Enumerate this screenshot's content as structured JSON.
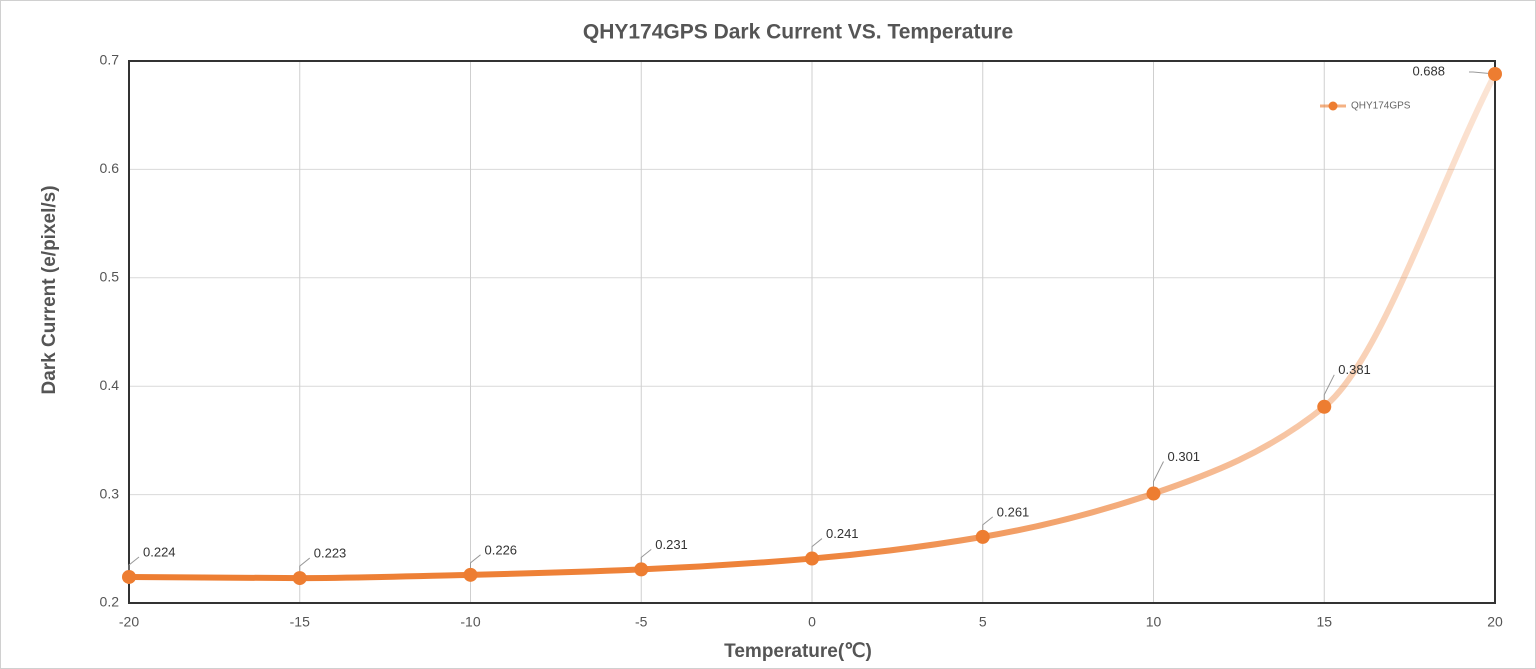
{
  "chart_data": {
    "type": "line",
    "title": "QHY174GPS  Dark Current VS. Temperature",
    "x_label": "Temperature(℃)",
    "y_label": "Dark Current (e/pixel/s)",
    "x": [
      -20,
      -15,
      -10,
      -5,
      0,
      5,
      10,
      15,
      20
    ],
    "series": [
      {
        "name": "QHY174GPS",
        "color": "#ed7d31",
        "values": [
          0.224,
          0.223,
          0.226,
          0.231,
          0.241,
          0.261,
          0.301,
          0.381,
          0.688
        ]
      }
    ],
    "xlim": [
      -20,
      20
    ],
    "xticks": [
      -20,
      -15,
      -10,
      -5,
      0,
      5,
      10,
      15,
      20
    ],
    "ylim": [
      0.2,
      0.7
    ],
    "yticks": [
      0.2,
      0.3,
      0.4,
      0.5,
      0.6,
      0.7
    ],
    "grid": true,
    "legend": "top-right"
  }
}
